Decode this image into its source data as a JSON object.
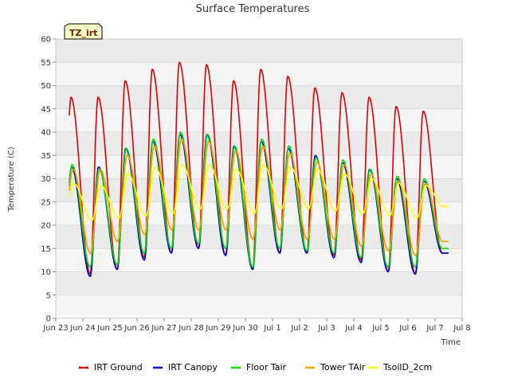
{
  "chart_data": {
    "type": "line",
    "title": "Surface Temperatures",
    "xlabel": "Time",
    "ylabel": "Temperature (C)",
    "tag": "TZ_irt",
    "ylim": [
      0,
      60
    ],
    "yticks": [
      0,
      5,
      10,
      15,
      20,
      25,
      30,
      35,
      40,
      45,
      50,
      55,
      60
    ],
    "xlim": [
      0,
      15
    ],
    "x_unit": "days from Jun 23",
    "xtick_labels": [
      "Jun 23",
      "Jun 24",
      "Jun 25",
      "Jun 26",
      "Jun 27",
      "Jun 28",
      "Jun 29",
      "Jun 30",
      "Jul 1",
      "Jul 2",
      "Jul 3",
      "Jul 4",
      "Jul 5",
      "Jul 6",
      "Jul 7",
      "Jul 8"
    ],
    "grid": true,
    "legend_position": "bottom",
    "data_days": [
      0.5,
      14.5
    ],
    "series": [
      {
        "name": "IRT Ground",
        "color": "#dd0000",
        "max": [
          47.5,
          47.5,
          51,
          53.5,
          55,
          54.5,
          51,
          53.5,
          52,
          49.5,
          48.5,
          47.5,
          45.5,
          44.5
        ],
        "min": [
          9,
          9.5,
          10.5,
          13,
          14,
          15,
          13.5,
          10.5,
          14,
          14,
          13.5,
          12.5,
          10,
          9.5,
          14
        ]
      },
      {
        "name": "IRT Canopy",
        "color": "#0000cc",
        "max": [
          32.5,
          32.5,
          36.5,
          38,
          39.5,
          39.5,
          37,
          38,
          36.5,
          35,
          33.5,
          32,
          30,
          29.5
        ],
        "min": [
          10,
          9,
          10.5,
          12.5,
          14,
          15,
          13.5,
          10.5,
          14,
          14,
          13,
          12,
          10,
          9.5,
          14
        ]
      },
      {
        "name": "Floor Tair",
        "color": "#00dd00",
        "max": [
          33,
          32,
          36.5,
          38.5,
          40,
          39.5,
          37,
          38.5,
          37,
          34.5,
          34,
          32,
          30.5,
          30
        ],
        "min": [
          11,
          11,
          11.5,
          14,
          15,
          16,
          15,
          11,
          15,
          14.5,
          14,
          13,
          11,
          11,
          15
        ]
      },
      {
        "name": "Tower TAir",
        "color": "#ff9900",
        "max": [
          32,
          32,
          35,
          37,
          38.5,
          38,
          36,
          37,
          35.5,
          33.5,
          33,
          31,
          29.5,
          29
        ],
        "min": [
          18,
          14,
          16.5,
          18,
          19,
          19,
          19,
          17,
          19,
          17,
          17,
          15.5,
          14.5,
          13.5,
          16.5
        ]
      },
      {
        "name": "TsoilD_2cm",
        "color": "#ffff00",
        "max": [
          29,
          28.5,
          31,
          32.5,
          33,
          33,
          32,
          33,
          32.5,
          32,
          31,
          30,
          29,
          28.5
        ],
        "min": [
          23,
          21,
          21.5,
          22,
          22.5,
          23.5,
          23.5,
          22.5,
          23.5,
          23.5,
          23,
          22.5,
          22,
          21.5,
          24
        ]
      }
    ]
  }
}
